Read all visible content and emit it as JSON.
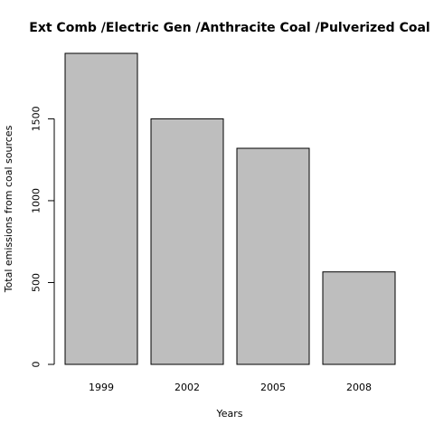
{
  "chart_data": {
    "type": "bar",
    "title": "Ext Comb /Electric Gen /Anthracite Coal /Pulverized Coal",
    "xlabel": "Years",
    "ylabel": "Total emissions from coal sources",
    "categories": [
      "1999",
      "2002",
      "2005",
      "2008"
    ],
    "values": [
      1900,
      1500,
      1320,
      565
    ],
    "ylim": [
      0,
      1900
    ],
    "yticks": [
      "0",
      "500",
      "1000",
      "1500"
    ],
    "grid": false,
    "legend": "none",
    "bar_color": "#bebebe",
    "bar_border_color": "#000000"
  }
}
